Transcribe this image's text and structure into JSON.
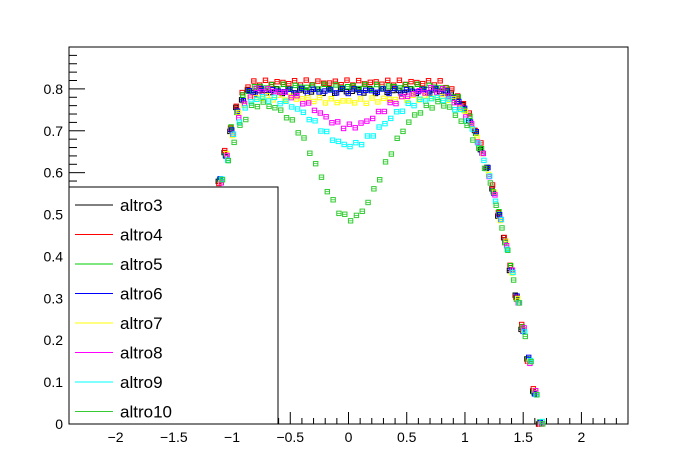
{
  "chart_data": {
    "type": "scatter",
    "xlim": [
      -2.4,
      2.4
    ],
    "ylim": [
      0,
      0.9
    ],
    "x_ticks": [
      "−2",
      "−1.5",
      "−1",
      "−0.5",
      "0",
      "0.5",
      "1",
      "1.5",
      "2"
    ],
    "x_tick_values": [
      -2,
      -1.5,
      -1,
      -0.5,
      0,
      0.5,
      1,
      1.5,
      2
    ],
    "y_ticks": [
      "0",
      "0.1",
      "0.2",
      "0.3",
      "0.4",
      "0.5",
      "0.6",
      "0.7",
      "0.8"
    ],
    "y_tick_values": [
      0,
      0.1,
      0.2,
      0.3,
      0.4,
      0.5,
      0.6,
      0.7,
      0.8
    ],
    "grid": false,
    "legend_position": "bottom-left",
    "x_range_points": [
      -1.1,
      1.65
    ],
    "series": [
      {
        "name": "altro3",
        "color": "#000000",
        "profile": {
          "edge": 0.79,
          "peak": 0.795,
          "center": 0.795
        }
      },
      {
        "name": "altro4",
        "color": "#ff0000",
        "profile": {
          "edge": 0.8,
          "peak": 0.815,
          "center": 0.815
        }
      },
      {
        "name": "altro5",
        "color": "#00cc00",
        "profile": {
          "edge": 0.79,
          "peak": 0.805,
          "center": 0.805
        }
      },
      {
        "name": "altro6",
        "color": "#0000ff",
        "profile": {
          "edge": 0.785,
          "peak": 0.795,
          "center": 0.795
        }
      },
      {
        "name": "altro7",
        "color": "#ffff00",
        "profile": {
          "edge": 0.775,
          "peak": 0.78,
          "center": 0.77
        }
      },
      {
        "name": "altro8",
        "color": "#ff00ff",
        "profile": {
          "edge": 0.77,
          "peak": 0.8,
          "center": 0.71
        }
      },
      {
        "name": "altro9",
        "color": "#00ffff",
        "profile": {
          "edge": 0.76,
          "peak": 0.78,
          "center": 0.665
        }
      },
      {
        "name": "altro10",
        "color": "#33cc33",
        "profile": {
          "edge": 0.74,
          "peak": 0.77,
          "center": 0.49
        }
      }
    ]
  }
}
